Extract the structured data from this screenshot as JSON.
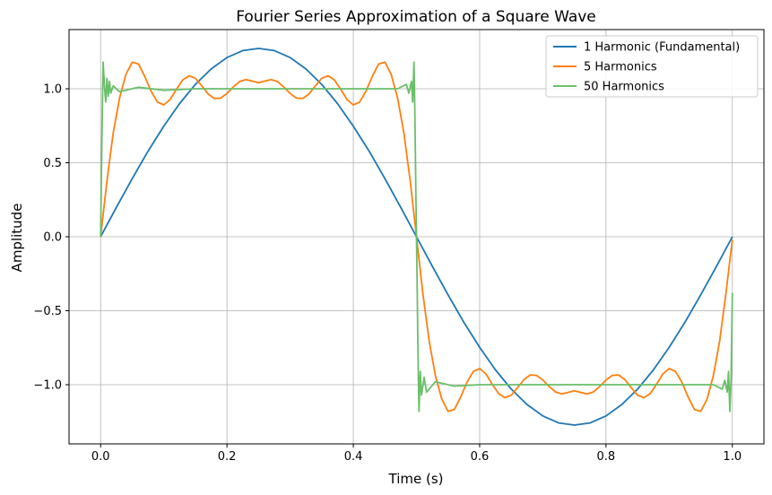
{
  "chart_data": {
    "type": "line",
    "title": "Fourier Series Approximation of a Square Wave",
    "xlabel": "Time (s)",
    "ylabel": "Amplitude",
    "xlim": [
      -0.05,
      1.05
    ],
    "ylim": [
      -1.4,
      1.4
    ],
    "xticks": [
      0.0,
      0.2,
      0.4,
      0.6,
      0.8,
      1.0
    ],
    "xtick_labels": [
      "0.0",
      "0.2",
      "0.4",
      "0.6",
      "0.8",
      "1.0"
    ],
    "yticks": [
      -1.0,
      -0.5,
      0.0,
      0.5,
      1.0
    ],
    "ytick_labels": [
      "−1.0",
      "−0.5",
      "0.0",
      "0.5",
      "1.0"
    ],
    "grid": true,
    "legend_position": "top-right",
    "series": [
      {
        "name": "1 Harmonic (Fundamental)",
        "color": "#1f77b4",
        "x": [
          0,
          0.025,
          0.05,
          0.075,
          0.1,
          0.125,
          0.15,
          0.175,
          0.2,
          0.225,
          0.25,
          0.275,
          0.3,
          0.325,
          0.35,
          0.375,
          0.4,
          0.425,
          0.45,
          0.475,
          0.5,
          0.525,
          0.55,
          0.575,
          0.6,
          0.625,
          0.65,
          0.675,
          0.7,
          0.725,
          0.75,
          0.775,
          0.8,
          0.825,
          0.85,
          0.875,
          0.9,
          0.925,
          0.95,
          0.975,
          1.0
        ],
        "y": [
          0.0,
          0.199,
          0.393,
          0.578,
          0.748,
          0.9,
          1.03,
          1.134,
          1.211,
          1.258,
          1.273,
          1.258,
          1.211,
          1.134,
          1.03,
          0.9,
          0.748,
          0.578,
          0.393,
          0.199,
          0.0,
          -0.199,
          -0.393,
          -0.578,
          -0.748,
          -0.9,
          -1.03,
          -1.134,
          -1.211,
          -1.258,
          -1.273,
          -1.258,
          -1.211,
          -1.134,
          -1.03,
          -0.9,
          -0.748,
          -0.578,
          -0.393,
          -0.199,
          0.0
        ]
      },
      {
        "name": "5 Harmonics",
        "color": "#ff7f0e",
        "x": [
          0,
          0.01,
          0.02,
          0.03,
          0.04,
          0.05,
          0.06,
          0.07,
          0.08,
          0.09,
          0.1,
          0.11,
          0.12,
          0.13,
          0.14,
          0.15,
          0.16,
          0.17,
          0.18,
          0.19,
          0.2,
          0.21,
          0.22,
          0.23,
          0.24,
          0.25,
          0.26,
          0.27,
          0.28,
          0.29,
          0.3,
          0.31,
          0.32,
          0.33,
          0.34,
          0.35,
          0.36,
          0.37,
          0.38,
          0.39,
          0.4,
          0.41,
          0.42,
          0.43,
          0.44,
          0.45,
          0.46,
          0.47,
          0.48,
          0.49,
          0.5,
          0.51,
          0.52,
          0.53,
          0.54,
          0.55,
          0.56,
          0.57,
          0.58,
          0.59,
          0.6,
          0.61,
          0.62,
          0.63,
          0.64,
          0.65,
          0.66,
          0.67,
          0.68,
          0.69,
          0.7,
          0.71,
          0.72,
          0.73,
          0.74,
          0.75,
          0.76,
          0.77,
          0.78,
          0.79,
          0.8,
          0.81,
          0.82,
          0.83,
          0.84,
          0.85,
          0.86,
          0.87,
          0.88,
          0.89,
          0.9,
          0.91,
          0.92,
          0.93,
          0.94,
          0.95,
          0.96,
          0.97,
          0.98,
          0.99,
          1.0
        ],
        "y": [
          0.0,
          0.378,
          0.703,
          0.939,
          1.097,
          1.18,
          1.167,
          1.083,
          0.983,
          0.91,
          0.891,
          0.927,
          0.997,
          1.06,
          1.088,
          1.071,
          1.02,
          0.966,
          0.934,
          0.937,
          0.968,
          1.012,
          1.049,
          1.062,
          1.052,
          1.041,
          1.052,
          1.062,
          1.049,
          1.012,
          0.968,
          0.937,
          0.934,
          0.966,
          1.02,
          1.071,
          1.088,
          1.06,
          0.997,
          0.927,
          0.891,
          0.91,
          0.983,
          1.083,
          1.167,
          1.18,
          1.097,
          0.939,
          0.703,
          0.378,
          0.0,
          -0.378,
          -0.703,
          -0.939,
          -1.097,
          -1.18,
          -1.167,
          -1.083,
          -0.983,
          -0.91,
          -0.891,
          -0.927,
          -0.997,
          -1.06,
          -1.088,
          -1.071,
          -1.02,
          -0.966,
          -0.934,
          -0.937,
          -0.968,
          -1.012,
          -1.049,
          -1.062,
          -1.052,
          -1.041,
          -1.052,
          -1.062,
          -1.049,
          -1.012,
          -0.968,
          -0.937,
          -0.934,
          -0.966,
          -1.02,
          -1.071,
          -1.088,
          -1.06,
          -0.997,
          -0.927,
          -0.891,
          -0.91,
          -0.983,
          -1.083,
          -1.167,
          -1.18,
          -1.097,
          -0.939,
          -0.703,
          -0.378,
          -0.02
        ]
      },
      {
        "name": "50 Harmonics",
        "color": "#6abf69",
        "x": [
          0,
          0.002,
          0.004,
          0.006,
          0.008,
          0.01,
          0.012,
          0.014,
          0.016,
          0.02,
          0.03,
          0.06,
          0.1,
          0.15,
          0.2,
          0.25,
          0.3,
          0.35,
          0.4,
          0.44,
          0.47,
          0.484,
          0.488,
          0.492,
          0.494,
          0.496,
          0.497,
          0.498,
          0.499,
          0.5,
          0.501,
          0.502,
          0.503,
          0.504,
          0.506,
          0.508,
          0.512,
          0.516,
          0.53,
          0.56,
          0.6,
          0.65,
          0.7,
          0.75,
          0.8,
          0.85,
          0.9,
          0.94,
          0.97,
          0.984,
          0.988,
          0.992,
          0.994,
          0.996,
          0.998,
          0.999,
          1.0
        ],
        "y": [
          0.0,
          0.65,
          1.18,
          1.02,
          0.91,
          1.07,
          0.95,
          1.05,
          0.97,
          1.02,
          0.98,
          1.01,
          0.99,
          1.0,
          1.0,
          1.0,
          1.0,
          1.0,
          1.0,
          1.0,
          1.0,
          1.03,
          0.97,
          1.05,
          0.91,
          1.18,
          0.95,
          0.65,
          0.3,
          0.0,
          -0.3,
          -0.65,
          -0.95,
          -1.18,
          -0.91,
          -1.07,
          -0.95,
          -1.05,
          -0.98,
          -1.01,
          -1.0,
          -1.0,
          -1.0,
          -1.0,
          -1.0,
          -1.0,
          -1.0,
          -1.0,
          -1.0,
          -1.03,
          -0.97,
          -1.05,
          -0.91,
          -1.18,
          -0.95,
          -0.65,
          -0.38
        ]
      }
    ]
  }
}
